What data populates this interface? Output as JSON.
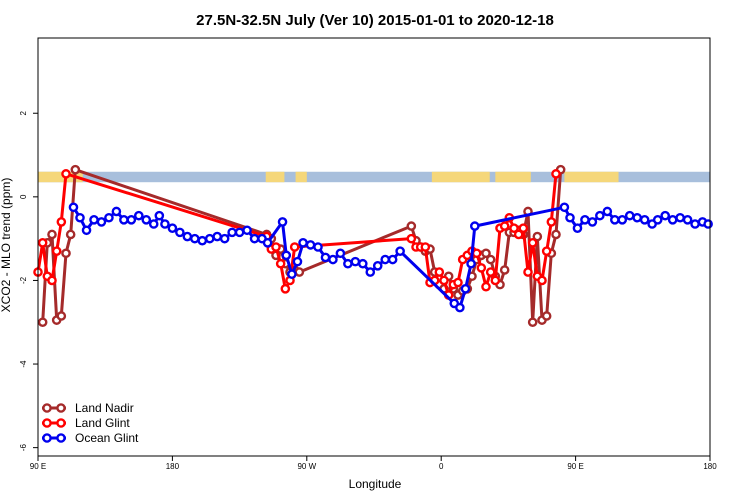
{
  "chart_data": {
    "type": "line",
    "title": "27.5N-32.5N July (Ver 10)   2015-01-01 to 2020-12-18",
    "xlabel": "Longitude",
    "ylabel": "XCO2 - MLO trend (ppm)",
    "xlim": [
      90,
      450
    ],
    "ylim": [
      -6.2,
      3.8
    ],
    "x_ticks": [
      {
        "value": 90,
        "label": "90 E"
      },
      {
        "value": 162,
        "label": "180"
      },
      {
        "value": 234,
        "label": "90 W"
      },
      {
        "value": 306,
        "label": "0"
      },
      {
        "value": 378,
        "label": "90 E"
      },
      {
        "value": 450,
        "label": "180"
      }
    ],
    "y_ticks": [
      {
        "value": -6,
        "label": "-6"
      },
      {
        "value": -4,
        "label": "-4"
      },
      {
        "value": -2,
        "label": "-2"
      },
      {
        "value": 0,
        "label": "0"
      },
      {
        "value": 2,
        "label": "2"
      }
    ],
    "grid": false,
    "legend_position": "bottom-left",
    "surface_band": {
      "y_range": [
        0.35,
        0.6
      ],
      "land_color": "#f5d77a",
      "ocean_color": "#a8bfdc",
      "land_segments": [
        [
          90,
          114
        ],
        [
          212,
          222
        ],
        [
          228,
          234
        ],
        [
          301,
          332
        ],
        [
          335,
          354
        ],
        [
          372,
          401
        ]
      ]
    },
    "series": [
      {
        "name": "Land Nadir",
        "color": "#a52a2a",
        "points": [
          [
            92.5,
            -3.0
          ],
          [
            95,
            -1.1
          ],
          [
            97.5,
            -0.9
          ],
          [
            100,
            -2.95
          ],
          [
            102.5,
            -2.85
          ],
          [
            105,
            -1.35
          ],
          [
            107.5,
            -0.9
          ],
          [
            110,
            0.65
          ],
          [
            212.5,
            -0.9
          ],
          [
            215,
            -1.0
          ],
          [
            217.5,
            -1.4
          ],
          [
            220,
            -1.25
          ],
          [
            222.5,
            -1.6
          ],
          [
            225,
            -1.8
          ],
          [
            227.5,
            -1.75
          ],
          [
            230,
            -1.8
          ],
          [
            290,
            -0.7
          ],
          [
            292.5,
            -1.05
          ],
          [
            295,
            -1.2
          ],
          [
            297.5,
            -1.3
          ],
          [
            300,
            -1.25
          ],
          [
            302.5,
            -1.8
          ],
          [
            305,
            -2.1
          ],
          [
            307.5,
            -2.2
          ],
          [
            310,
            -1.9
          ],
          [
            312.5,
            -2.2
          ],
          [
            315,
            -2.35
          ],
          [
            317.5,
            -2.25
          ],
          [
            320,
            -2.2
          ],
          [
            322.5,
            -1.9
          ],
          [
            325,
            -1.5
          ],
          [
            327.5,
            -1.4
          ],
          [
            330,
            -1.35
          ],
          [
            332.5,
            -1.5
          ],
          [
            335,
            -1.9
          ],
          [
            337.5,
            -2.1
          ],
          [
            340,
            -1.75
          ],
          [
            342.5,
            -0.85
          ],
          [
            345,
            -0.85
          ],
          [
            347.5,
            -0.8
          ],
          [
            350,
            -0.9
          ],
          [
            352.5,
            -0.35
          ],
          [
            355,
            -3.0
          ],
          [
            357.5,
            -0.95
          ],
          [
            360,
            -2.95
          ],
          [
            362.5,
            -2.85
          ],
          [
            365,
            -1.35
          ],
          [
            367.5,
            -0.9
          ],
          [
            370,
            0.65
          ]
        ]
      },
      {
        "name": "Land Glint",
        "color": "#ff0000",
        "points": [
          [
            90,
            -1.8
          ],
          [
            92.5,
            -1.1
          ],
          [
            95,
            -1.9
          ],
          [
            97.5,
            -2.0
          ],
          [
            100,
            -1.3
          ],
          [
            102.5,
            -0.6
          ],
          [
            105,
            0.55
          ],
          [
            212.5,
            -0.95
          ],
          [
            215,
            -1.25
          ],
          [
            217.5,
            -1.2
          ],
          [
            220,
            -1.6
          ],
          [
            222.5,
            -2.2
          ],
          [
            225,
            -2.0
          ],
          [
            227.5,
            -1.2
          ],
          [
            290,
            -1.0
          ],
          [
            292.5,
            -1.2
          ],
          [
            295,
            -1.2
          ],
          [
            297.5,
            -1.2
          ],
          [
            300,
            -2.05
          ],
          [
            302.5,
            -2.0
          ],
          [
            305,
            -1.8
          ],
          [
            307.5,
            -2.0
          ],
          [
            310,
            -2.35
          ],
          [
            312.5,
            -2.1
          ],
          [
            315,
            -2.05
          ],
          [
            317.5,
            -1.5
          ],
          [
            320,
            -1.4
          ],
          [
            322.5,
            -1.3
          ],
          [
            325,
            -1.35
          ],
          [
            327.5,
            -1.7
          ],
          [
            330,
            -2.15
          ],
          [
            332.5,
            -1.8
          ],
          [
            335,
            -2.0
          ],
          [
            337.5,
            -0.75
          ],
          [
            340,
            -0.7
          ],
          [
            342.5,
            -0.5
          ],
          [
            345,
            -0.75
          ],
          [
            347.5,
            -0.9
          ],
          [
            350,
            -0.75
          ],
          [
            352.5,
            -1.8
          ],
          [
            355,
            -1.1
          ],
          [
            357.5,
            -1.9
          ],
          [
            360,
            -2.0
          ],
          [
            362.5,
            -1.3
          ],
          [
            365,
            -0.6
          ],
          [
            367.5,
            0.55
          ]
        ]
      },
      {
        "name": "Ocean Glint",
        "color": "#0000ee",
        "points": [
          [
            109,
            -0.25
          ],
          [
            112.5,
            -0.5
          ],
          [
            116,
            -0.8
          ],
          [
            120,
            -0.55
          ],
          [
            124,
            -0.6
          ],
          [
            128,
            -0.5
          ],
          [
            132,
            -0.35
          ],
          [
            136,
            -0.55
          ],
          [
            140,
            -0.55
          ],
          [
            144,
            -0.45
          ],
          [
            148,
            -0.55
          ],
          [
            152,
            -0.65
          ],
          [
            155,
            -0.45
          ],
          [
            158,
            -0.65
          ],
          [
            162,
            -0.75
          ],
          [
            166,
            -0.85
          ],
          [
            170,
            -0.95
          ],
          [
            174,
            -1.0
          ],
          [
            178,
            -1.05
          ],
          [
            182,
            -1.0
          ],
          [
            186,
            -0.95
          ],
          [
            190,
            -1.0
          ],
          [
            194,
            -0.85
          ],
          [
            198,
            -0.85
          ],
          [
            202,
            -0.8
          ],
          [
            206,
            -1.0
          ],
          [
            210,
            -1.0
          ],
          [
            213,
            -1.1
          ],
          [
            221,
            -0.6
          ],
          [
            223,
            -1.4
          ],
          [
            226,
            -1.85
          ],
          [
            229,
            -1.55
          ],
          [
            232,
            -1.1
          ],
          [
            236,
            -1.15
          ],
          [
            240,
            -1.2
          ],
          [
            244,
            -1.45
          ],
          [
            248,
            -1.5
          ],
          [
            252,
            -1.35
          ],
          [
            256,
            -1.6
          ],
          [
            260,
            -1.55
          ],
          [
            264,
            -1.6
          ],
          [
            268,
            -1.8
          ],
          [
            272,
            -1.65
          ],
          [
            276,
            -1.5
          ],
          [
            280,
            -1.5
          ],
          [
            284,
            -1.3
          ],
          [
            313,
            -2.55
          ],
          [
            316,
            -2.65
          ],
          [
            319,
            -2.2
          ],
          [
            322,
            -1.6
          ],
          [
            324,
            -0.7
          ],
          [
            372,
            -0.25
          ],
          [
            375,
            -0.5
          ],
          [
            379,
            -0.75
          ],
          [
            383,
            -0.55
          ],
          [
            387,
            -0.6
          ],
          [
            391,
            -0.45
          ],
          [
            395,
            -0.35
          ],
          [
            399,
            -0.55
          ],
          [
            403,
            -0.55
          ],
          [
            407,
            -0.45
          ],
          [
            411,
            -0.5
          ],
          [
            415,
            -0.55
          ],
          [
            419,
            -0.65
          ],
          [
            422,
            -0.55
          ],
          [
            426,
            -0.45
          ],
          [
            430,
            -0.55
          ],
          [
            434,
            -0.5
          ],
          [
            438,
            -0.55
          ],
          [
            442,
            -0.65
          ],
          [
            446,
            -0.6
          ],
          [
            449,
            -0.65
          ]
        ]
      }
    ]
  }
}
